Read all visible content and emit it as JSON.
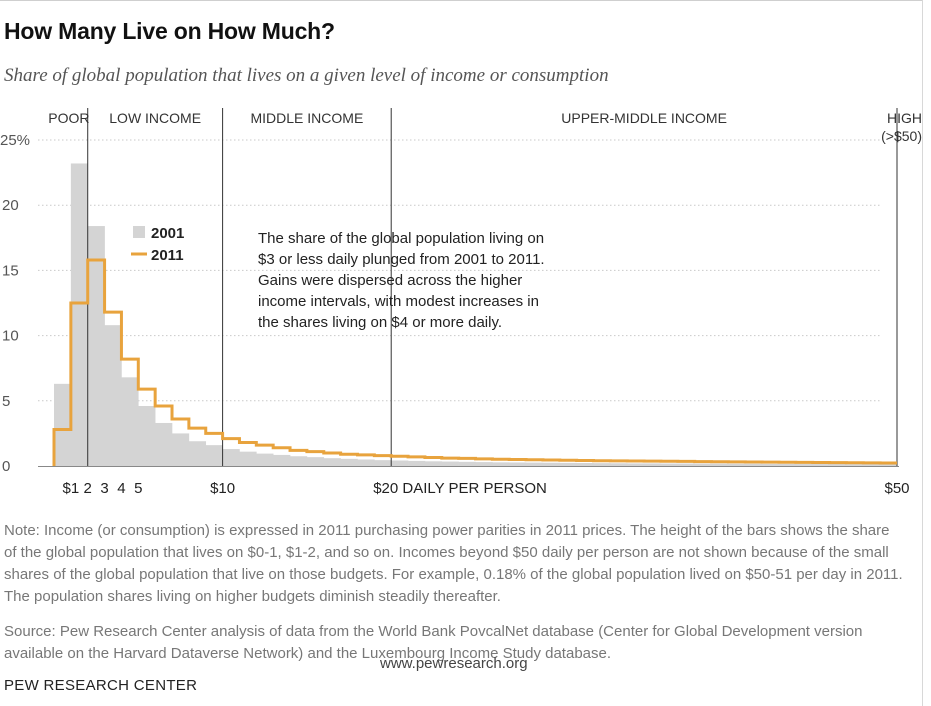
{
  "header": {
    "title": "How Many Live on How Much?",
    "subtitle": "Share of global population that lives on a given level of income or consumption"
  },
  "chart_data": {
    "type": "bar",
    "title": "How Many Live on How Much?",
    "xlabel": "DAILY PER PERSON",
    "ylabel": "",
    "xlim": [
      0,
      50
    ],
    "ylim": [
      0,
      25
    ],
    "y_ticks": [
      "0",
      "5",
      "10",
      "15",
      "20",
      "25%"
    ],
    "x_ticks": [
      {
        "x": 1,
        "label": "$1"
      },
      {
        "x": 2,
        "label": "2"
      },
      {
        "x": 3,
        "label": "3"
      },
      {
        "x": 4,
        "label": "4"
      },
      {
        "x": 5,
        "label": "5"
      },
      {
        "x": 10,
        "label": "$10"
      },
      {
        "x": 20,
        "label": "$20 DAILY PER PERSON"
      },
      {
        "x": 50,
        "label": "$50"
      }
    ],
    "income_categories": [
      {
        "label": "POOR",
        "from": 0,
        "to": 2
      },
      {
        "label": "LOW INCOME",
        "from": 2,
        "to": 10
      },
      {
        "label": "MIDDLE INCOME",
        "from": 10,
        "to": 20
      },
      {
        "label": "UPPER-MIDDLE INCOME",
        "from": 20,
        "to": 50
      },
      {
        "label": "HIGH",
        "sublabel": "(>$50)",
        "from": 50,
        "to": 50
      }
    ],
    "bin_width": 1,
    "series": [
      {
        "name": "2001",
        "style": "bars",
        "color": "#d4d4d4",
        "values": [
          6.3,
          23.2,
          18.4,
          10.8,
          6.8,
          4.6,
          3.3,
          2.5,
          1.9,
          1.6,
          1.3,
          1.1,
          0.95,
          0.85,
          0.75,
          0.68,
          0.6,
          0.55,
          0.5,
          0.45,
          0.42,
          0.39,
          0.36,
          0.34,
          0.32,
          0.3,
          0.28,
          0.27,
          0.26,
          0.25,
          0.24,
          0.23,
          0.22,
          0.21,
          0.2,
          0.2,
          0.19,
          0.19,
          0.18,
          0.18,
          0.17,
          0.17,
          0.16,
          0.16,
          0.15,
          0.15,
          0.15,
          0.14,
          0.14,
          0.14
        ]
      },
      {
        "name": "2011",
        "style": "step-line",
        "color": "#e8a33d",
        "values": [
          2.8,
          12.5,
          15.8,
          11.8,
          8.2,
          5.9,
          4.6,
          3.6,
          2.9,
          2.5,
          2.1,
          1.8,
          1.6,
          1.4,
          1.2,
          1.1,
          1.0,
          0.9,
          0.85,
          0.8,
          0.75,
          0.7,
          0.65,
          0.6,
          0.58,
          0.55,
          0.52,
          0.5,
          0.48,
          0.46,
          0.44,
          0.42,
          0.4,
          0.39,
          0.38,
          0.37,
          0.36,
          0.35,
          0.34,
          0.33,
          0.32,
          0.31,
          0.3,
          0.29,
          0.28,
          0.27,
          0.26,
          0.25,
          0.24,
          0.23
        ]
      }
    ],
    "legend": {
      "placement": "upper-left",
      "items": [
        "2001",
        "2011"
      ]
    },
    "annotation": "The share of the global population living on $3 or less daily plunged from 2001 to 2011. Gains were dispersed across the higher income intervals, with modest increases in the shares living on $4 or more daily.",
    "annotation_lines": [
      "The share of the global population living on",
      "$3 or less daily plunged from 2001 to 2011.",
      "Gains were dispersed across the higher",
      "income intervals, with modest increases in",
      "the shares living on $4 or more daily."
    ]
  },
  "footer": {
    "note": "Note: Income (or consumption) is expressed in 2011 purchasing power parities in 2011 prices. The height of the bars shows the share of the global population that lives on $0-1, $1-2, and so on. Incomes beyond $50 daily per person are not shown because of the small shares of the global population that live on those budgets. For example, 0.18% of the global population lived on $50-51 per day in 2011. The population shares living on higher budgets diminish steadily thereafter.",
    "source": "Source: Pew Research Center analysis of data from the World Bank PovcalNet database (Center for Global Development version available on the Harvard Dataverse Network) and the Luxembourg Income Study database.",
    "url": "www.pewresearch.org",
    "org": "PEW RESEARCH CENTER"
  },
  "colors": {
    "bars_2001": "#d4d4d4",
    "line_2011": "#e8a33d"
  }
}
